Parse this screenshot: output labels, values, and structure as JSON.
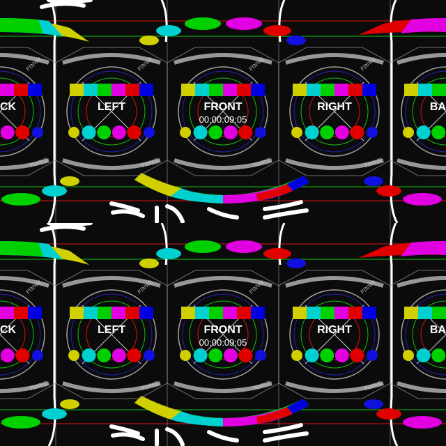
{
  "views": [
    {
      "label": "BACK",
      "timecode": ""
    },
    {
      "label": "LEFT",
      "timecode": ""
    },
    {
      "label": "FRONT",
      "timecode": "00:00:09:05"
    },
    {
      "label": "RIGHT",
      "timecode": ""
    },
    {
      "label": "BACK",
      "timecode": ""
    }
  ],
  "watermark": "FINWE",
  "colors": {
    "background": "#0b0b0b",
    "grid_line": "#9a9a9a",
    "red_line": "#e01010",
    "green_line": "#10c010",
    "blue_line": "#2020c0",
    "bars": [
      "#d0d000",
      "#00d0d0",
      "#00d000",
      "#e000e0",
      "#e00000",
      "#0000e0"
    ],
    "circles": [
      "#d0d000",
      "#00d0d0",
      "#00d000",
      "#e000e0",
      "#e00000",
      "#1010e0"
    ]
  }
}
